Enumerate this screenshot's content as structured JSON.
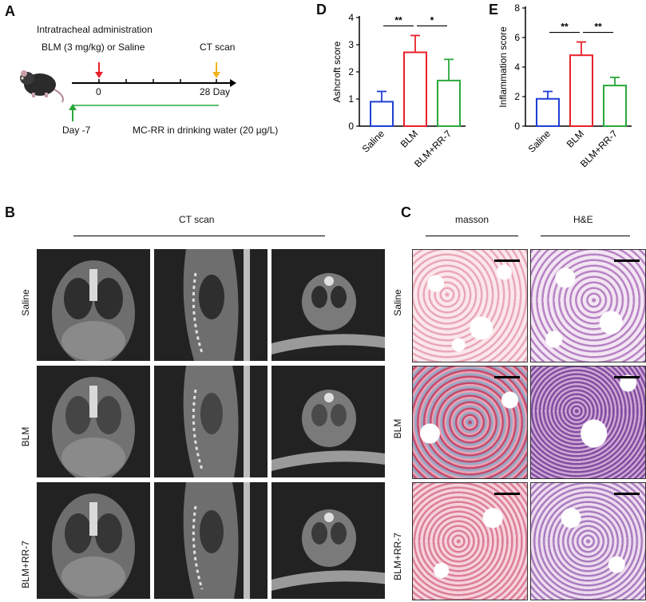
{
  "panels": {
    "A": "A",
    "B": "B",
    "C": "C",
    "D": "D",
    "E": "E"
  },
  "timeline": {
    "title": "Intratracheal administration",
    "treatment": "BLM (3 mg/kg) or Saline",
    "ct_scan": "CT scan",
    "day0": "0",
    "day28": "28 Day",
    "day_minus7": "Day -7",
    "mcrr": "MC-RR in drinking water (20 µg/L)",
    "colors": {
      "red_arrow": "#e8202a",
      "orange_arrow": "#f2b21c",
      "green_line": "#2aa83c"
    }
  },
  "ct": {
    "header": "CT scan",
    "rows": [
      "Saline",
      "BLM",
      "BLM+RR-7"
    ]
  },
  "histology": {
    "columns": [
      "masson",
      "H&E"
    ],
    "rows": [
      "Saline",
      "BLM",
      "BLM+RR-7"
    ]
  },
  "chart_data": [
    {
      "type": "bar",
      "panel": "D",
      "ylabel": "Ashcroft score",
      "categories": [
        "Saline",
        "BLM",
        "BLM+RR-7"
      ],
      "values": [
        0.9,
        2.72,
        1.68
      ],
      "errors": [
        0.38,
        0.62,
        0.78
      ],
      "colors": [
        "#1f3fd6",
        "#e8202a",
        "#2aa83c"
      ],
      "ylim": [
        0,
        4
      ],
      "yticks": [
        0,
        1,
        2,
        3,
        4
      ],
      "significance": [
        {
          "from": 0,
          "to": 1,
          "label": "**"
        },
        {
          "from": 1,
          "to": 2,
          "label": "*"
        }
      ]
    },
    {
      "type": "bar",
      "panel": "E",
      "ylabel": "Inflammation score",
      "categories": [
        "Saline",
        "BLM",
        "BLM+RR-7"
      ],
      "values": [
        1.85,
        4.8,
        2.75
      ],
      "errors": [
        0.5,
        0.9,
        0.55
      ],
      "colors": [
        "#1f3fd6",
        "#e8202a",
        "#2aa83c"
      ],
      "ylim": [
        0,
        8
      ],
      "yticks": [
        0,
        2,
        4,
        6,
        8
      ],
      "significance": [
        {
          "from": 0,
          "to": 1,
          "label": "**"
        },
        {
          "from": 1,
          "to": 2,
          "label": "**"
        }
      ]
    }
  ]
}
